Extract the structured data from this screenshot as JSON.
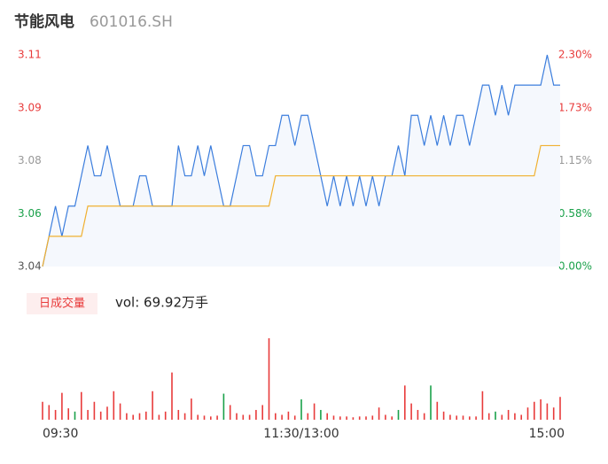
{
  "chart_data": [
    {
      "type": "line",
      "title": "节能风电",
      "subtitle": "601016.SH",
      "xlim": [
        0,
        80
      ],
      "xticks": [
        {
          "value": 0,
          "label": "09:30"
        },
        {
          "value": 40,
          "label": "11:30/13:00"
        },
        {
          "value": 80,
          "label": "15:00"
        }
      ],
      "ylim": [
        3.04,
        3.11
      ],
      "yticks": [
        3.04,
        {
          "value": 3.0575,
          "label": "3.06"
        },
        {
          "value": 3.075,
          "label": "3.08"
        },
        {
          "value": 3.0925,
          "label": "3.09"
        },
        3.11
      ],
      "ytick_colors": [
        "#555555",
        "#1aa14a",
        "#999999",
        "#e83b3b",
        "#e83b3b"
      ],
      "y2lim": [
        0,
        2.3
      ],
      "y2ticks": [
        {
          "value": 0,
          "label": "0.00%"
        },
        {
          "value": 0.575,
          "label": "0.58%"
        },
        {
          "value": 1.15,
          "label": "1.15%"
        },
        {
          "value": 1.725,
          "label": "1.73%"
        },
        {
          "value": 2.3,
          "label": "2.30%"
        }
      ],
      "y2tick_colors": [
        "#1aa14a",
        "#1aa14a",
        "#999999",
        "#e83b3b",
        "#e83b3b"
      ],
      "area_color": "#f5f8fd",
      "series": [
        {
          "color": "#3b7ddd",
          "values": [
            3.04,
            3.05,
            3.06,
            3.05,
            3.06,
            3.06,
            3.07,
            3.08,
            3.07,
            3.07,
            3.08,
            3.07,
            3.06,
            3.06,
            3.06,
            3.07,
            3.07,
            3.06,
            3.06,
            3.06,
            3.06,
            3.08,
            3.07,
            3.07,
            3.08,
            3.07,
            3.08,
            3.07,
            3.06,
            3.06,
            3.07,
            3.08,
            3.08,
            3.07,
            3.07,
            3.08,
            3.08,
            3.09,
            3.09,
            3.08,
            3.09,
            3.09,
            3.08,
            3.07,
            3.06,
            3.07,
            3.06,
            3.07,
            3.06,
            3.07,
            3.06,
            3.07,
            3.06,
            3.07,
            3.07,
            3.08,
            3.07,
            3.09,
            3.09,
            3.08,
            3.09,
            3.08,
            3.09,
            3.08,
            3.09,
            3.09,
            3.08,
            3.09,
            3.1,
            3.1,
            3.09,
            3.1,
            3.09,
            3.1,
            3.1,
            3.1,
            3.1,
            3.1,
            3.11,
            3.1,
            3.1
          ]
        },
        {
          "color": "#f0b030",
          "values": [
            3.04,
            3.05,
            3.05,
            3.05,
            3.05,
            3.05,
            3.05,
            3.06,
            3.06,
            3.06,
            3.06,
            3.06,
            3.06,
            3.06,
            3.06,
            3.06,
            3.06,
            3.06,
            3.06,
            3.06,
            3.06,
            3.06,
            3.06,
            3.06,
            3.06,
            3.06,
            3.06,
            3.06,
            3.06,
            3.06,
            3.06,
            3.06,
            3.06,
            3.06,
            3.06,
            3.06,
            3.07,
            3.07,
            3.07,
            3.07,
            3.07,
            3.07,
            3.07,
            3.07,
            3.07,
            3.07,
            3.07,
            3.07,
            3.07,
            3.07,
            3.07,
            3.07,
            3.07,
            3.07,
            3.07,
            3.07,
            3.07,
            3.07,
            3.07,
            3.07,
            3.07,
            3.07,
            3.07,
            3.07,
            3.07,
            3.07,
            3.07,
            3.07,
            3.07,
            3.07,
            3.07,
            3.07,
            3.07,
            3.07,
            3.07,
            3.07,
            3.07,
            3.08,
            3.08,
            3.08,
            3.08
          ]
        }
      ]
    },
    {
      "type": "bar",
      "legend_label": "日成交量",
      "summary": "vol: 69.92万手",
      "ylim": [
        0,
        100
      ],
      "values": [
        22,
        18,
        12,
        33,
        14,
        10,
        34,
        12,
        22,
        10,
        16,
        35,
        20,
        8,
        6,
        8,
        10,
        35,
        6,
        10,
        58,
        12,
        8,
        26,
        6,
        5,
        4,
        5,
        32,
        18,
        8,
        6,
        6,
        12,
        18,
        100,
        8,
        6,
        10,
        5,
        25,
        8,
        20,
        12,
        8,
        5,
        4,
        4,
        3,
        4,
        4,
        5,
        15,
        6,
        4,
        12,
        42,
        20,
        12,
        8,
        42,
        22,
        10,
        6,
        5,
        5,
        4,
        4,
        35,
        8,
        10,
        6,
        12,
        8,
        6,
        15,
        22,
        25,
        20,
        15,
        28
      ],
      "colors": [
        "#e83b3b",
        "#e83b3b",
        "#e83b3b",
        "#e83b3b",
        "#e83b3b",
        "#1aa14a",
        "#e83b3b",
        "#e83b3b",
        "#e83b3b",
        "#e83b3b",
        "#e83b3b",
        "#e83b3b",
        "#e83b3b",
        "#e83b3b",
        "#e83b3b",
        "#e83b3b",
        "#e83b3b",
        "#e83b3b",
        "#e83b3b",
        "#e83b3b",
        "#e83b3b",
        "#e83b3b",
        "#e83b3b",
        "#e83b3b",
        "#e83b3b",
        "#e83b3b",
        "#e83b3b",
        "#e83b3b",
        "#1aa14a",
        "#e83b3b",
        "#e83b3b",
        "#e83b3b",
        "#e83b3b",
        "#e83b3b",
        "#e83b3b",
        "#e83b3b",
        "#e83b3b",
        "#e83b3b",
        "#e83b3b",
        "#e83b3b",
        "#1aa14a",
        "#e83b3b",
        "#e83b3b",
        "#1aa14a",
        "#e83b3b",
        "#e83b3b",
        "#e83b3b",
        "#e83b3b",
        "#e83b3b",
        "#e83b3b",
        "#e83b3b",
        "#e83b3b",
        "#e83b3b",
        "#e83b3b",
        "#e83b3b",
        "#1aa14a",
        "#e83b3b",
        "#e83b3b",
        "#e83b3b",
        "#e83b3b",
        "#1aa14a",
        "#e83b3b",
        "#e83b3b",
        "#e83b3b",
        "#e83b3b",
        "#e83b3b",
        "#e83b3b",
        "#e83b3b",
        "#e83b3b",
        "#e83b3b",
        "#1aa14a",
        "#e83b3b",
        "#e83b3b",
        "#e83b3b",
        "#e83b3b",
        "#e83b3b",
        "#e83b3b",
        "#e83b3b",
        "#e83b3b",
        "#e83b3b",
        "#e83b3b"
      ]
    }
  ]
}
